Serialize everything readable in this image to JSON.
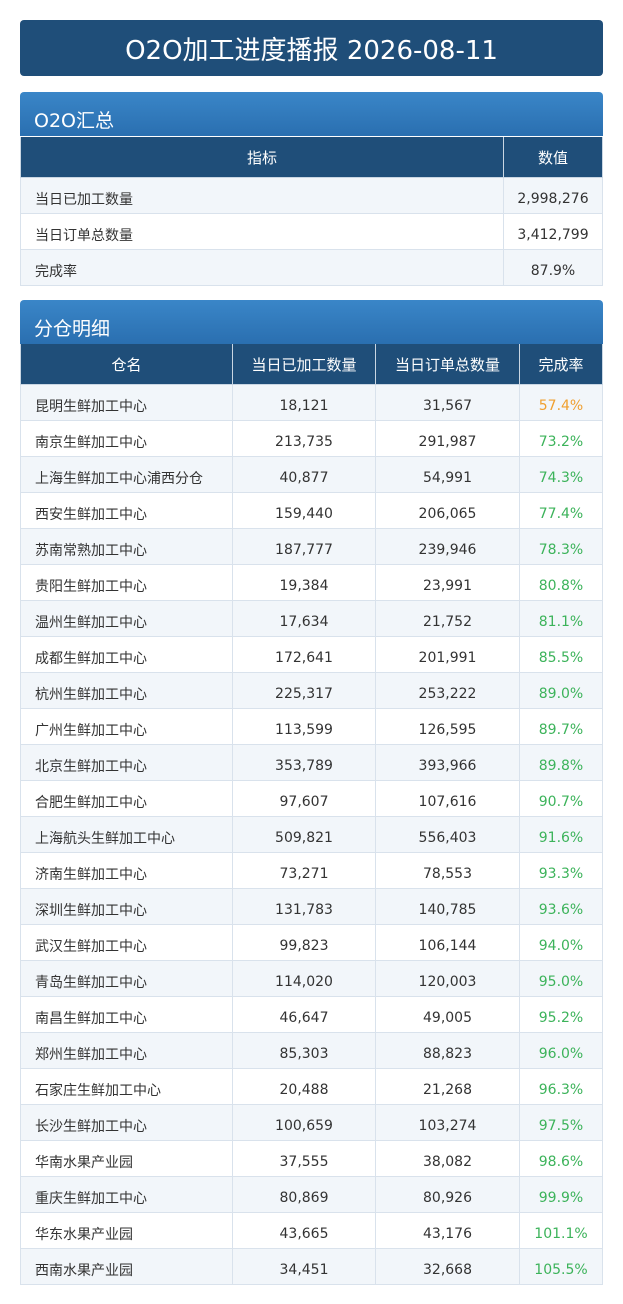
{
  "header": {
    "title": "O2O加工进度播报 2026-08-11"
  },
  "summary": {
    "title": "O2O汇总",
    "columns": [
      "指标",
      "数值"
    ],
    "rows": [
      [
        "当日已加工数量",
        "2,998,276"
      ],
      [
        "当日订单总数量",
        "3,412,799"
      ],
      [
        "完成率",
        "87.9%"
      ]
    ]
  },
  "detail": {
    "title": "分仓明细",
    "columns": [
      "仓名",
      "当日已加工数量",
      "当日订单总数量",
      "完成率"
    ],
    "rows": [
      {
        "cells": [
          "昆明生鲜加工中心",
          "18,121",
          "31,567",
          "57.4%"
        ],
        "rate_color": "#f0a030"
      },
      {
        "cells": [
          "南京生鲜加工中心",
          "213,735",
          "291,987",
          "73.2%"
        ],
        "rate_color": "#3cb35a"
      },
      {
        "cells": [
          "上海生鲜加工中心浦西分仓",
          "40,877",
          "54,991",
          "74.3%"
        ],
        "rate_color": "#3cb35a"
      },
      {
        "cells": [
          "西安生鲜加工中心",
          "159,440",
          "206,065",
          "77.4%"
        ],
        "rate_color": "#3cb35a"
      },
      {
        "cells": [
          "苏南常熟加工中心",
          "187,777",
          "239,946",
          "78.3%"
        ],
        "rate_color": "#3cb35a"
      },
      {
        "cells": [
          "贵阳生鲜加工中心",
          "19,384",
          "23,991",
          "80.8%"
        ],
        "rate_color": "#3cb35a"
      },
      {
        "cells": [
          "温州生鲜加工中心",
          "17,634",
          "21,752",
          "81.1%"
        ],
        "rate_color": "#3cb35a"
      },
      {
        "cells": [
          "成都生鲜加工中心",
          "172,641",
          "201,991",
          "85.5%"
        ],
        "rate_color": "#3cb35a"
      },
      {
        "cells": [
          "杭州生鲜加工中心",
          "225,317",
          "253,222",
          "89.0%"
        ],
        "rate_color": "#3cb35a"
      },
      {
        "cells": [
          "广州生鲜加工中心",
          "113,599",
          "126,595",
          "89.7%"
        ],
        "rate_color": "#3cb35a"
      },
      {
        "cells": [
          "北京生鲜加工中心",
          "353,789",
          "393,966",
          "89.8%"
        ],
        "rate_color": "#3cb35a"
      },
      {
        "cells": [
          "合肥生鲜加工中心",
          "97,607",
          "107,616",
          "90.7%"
        ],
        "rate_color": "#3cb35a"
      },
      {
        "cells": [
          "上海航头生鲜加工中心",
          "509,821",
          "556,403",
          "91.6%"
        ],
        "rate_color": "#3cb35a"
      },
      {
        "cells": [
          "济南生鲜加工中心",
          "73,271",
          "78,553",
          "93.3%"
        ],
        "rate_color": "#3cb35a"
      },
      {
        "cells": [
          "深圳生鲜加工中心",
          "131,783",
          "140,785",
          "93.6%"
        ],
        "rate_color": "#3cb35a"
      },
      {
        "cells": [
          "武汉生鲜加工中心",
          "99,823",
          "106,144",
          "94.0%"
        ],
        "rate_color": "#3cb35a"
      },
      {
        "cells": [
          "青岛生鲜加工中心",
          "114,020",
          "120,003",
          "95.0%"
        ],
        "rate_color": "#3cb35a"
      },
      {
        "cells": [
          "南昌生鲜加工中心",
          "46,647",
          "49,005",
          "95.2%"
        ],
        "rate_color": "#3cb35a"
      },
      {
        "cells": [
          "郑州生鲜加工中心",
          "85,303",
          "88,823",
          "96.0%"
        ],
        "rate_color": "#3cb35a"
      },
      {
        "cells": [
          "石家庄生鲜加工中心",
          "20,488",
          "21,268",
          "96.3%"
        ],
        "rate_color": "#3cb35a"
      },
      {
        "cells": [
          "长沙生鲜加工中心",
          "100,659",
          "103,274",
          "97.5%"
        ],
        "rate_color": "#3cb35a"
      },
      {
        "cells": [
          "华南水果产业园",
          "37,555",
          "38,082",
          "98.6%"
        ],
        "rate_color": "#3cb35a"
      },
      {
        "cells": [
          "重庆生鲜加工中心",
          "80,869",
          "80,926",
          "99.9%"
        ],
        "rate_color": "#3cb35a"
      },
      {
        "cells": [
          "华东水果产业园",
          "43,665",
          "43,176",
          "101.1%"
        ],
        "rate_color": "#3cb35a"
      },
      {
        "cells": [
          "西南水果产业园",
          "34,451",
          "32,668",
          "105.5%"
        ],
        "rate_color": "#3cb35a"
      }
    ]
  }
}
